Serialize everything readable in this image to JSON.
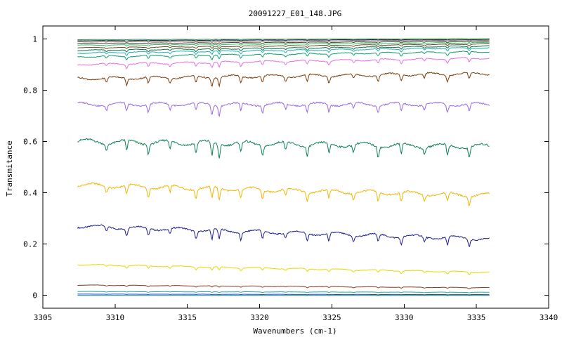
{
  "chart_data": {
    "type": "line",
    "title": "20091227_E01_148.JPG",
    "xlabel": "Wavenumbers (cm-1)",
    "ylabel": "Transmitance",
    "xlim": [
      3305,
      3340
    ],
    "ylim": [
      -0.05,
      1.05
    ],
    "xticks": [
      "3305",
      "3310",
      "3315",
      "3320",
      "3325",
      "3330",
      "3335",
      "3340"
    ],
    "yticks": [
      "0",
      "0.2",
      "0.4",
      "0.6",
      "0.8",
      "1"
    ],
    "x_range_of_data": [
      3307.4,
      3335.9
    ],
    "grid": false,
    "legend": "none",
    "absorption_lines_cm1": [
      3309.4,
      3310.8,
      3312.3,
      3313.8,
      3315.6,
      3316.7,
      3317.2,
      3318.7,
      3320.2,
      3321.8,
      3323.3,
      3324.8,
      3326.5,
      3328.2,
      3329.8,
      3331.4,
      3333.0,
      3334.5
    ],
    "series": [
      {
        "start": 0.27,
        "end": 0.22,
        "depth": 0.03,
        "color": "#1a1a8c"
      },
      {
        "start": 0.43,
        "end": 0.39,
        "depth": 0.035,
        "color": "#f0b400"
      },
      {
        "start": 0.6,
        "end": 0.58,
        "depth": 0.04,
        "color": "#0a8050"
      },
      {
        "start": 0.745,
        "end": 0.745,
        "depth": 0.03,
        "color": "#9966e6"
      },
      {
        "start": 0.845,
        "end": 0.865,
        "depth": 0.025,
        "color": "#7a3c0a"
      },
      {
        "start": 0.9,
        "end": 0.925,
        "depth": 0.015,
        "color": "#e66ee6"
      },
      {
        "start": 0.12,
        "end": 0.09,
        "depth": 0.01,
        "color": "#e6d800"
      },
      {
        "start": 0.04,
        "end": 0.03,
        "depth": 0.004,
        "color": "#8b3a1a"
      },
      {
        "start": 0.015,
        "end": 0.012,
        "depth": 0.002,
        "color": "#20b0a0"
      },
      {
        "start": 0.005,
        "end": 0.003,
        "depth": 0.001,
        "color": "#2040e0"
      },
      {
        "start": 0.0,
        "end": 0.0,
        "depth": 0.0005,
        "color": "#108080"
      },
      {
        "start": 0.93,
        "end": 0.95,
        "depth": 0.012,
        "color": "#10a070"
      },
      {
        "start": 0.945,
        "end": 0.965,
        "depth": 0.01,
        "color": "#20b0b0"
      },
      {
        "start": 0.955,
        "end": 0.972,
        "depth": 0.008,
        "color": "#0a7040"
      },
      {
        "start": 0.965,
        "end": 0.98,
        "depth": 0.006,
        "color": "#6a4a2a"
      },
      {
        "start": 0.975,
        "end": 0.985,
        "depth": 0.005,
        "color": "#30c060"
      },
      {
        "start": 0.982,
        "end": 0.99,
        "depth": 0.004,
        "color": "#404040"
      },
      {
        "start": 0.988,
        "end": 0.995,
        "depth": 0.003,
        "color": "#8a6a3a"
      },
      {
        "start": 0.993,
        "end": 0.998,
        "depth": 0.002,
        "color": "#1a1a8c"
      },
      {
        "start": 0.997,
        "end": 1.0,
        "depth": 0.001,
        "color": "#20a020"
      }
    ]
  }
}
